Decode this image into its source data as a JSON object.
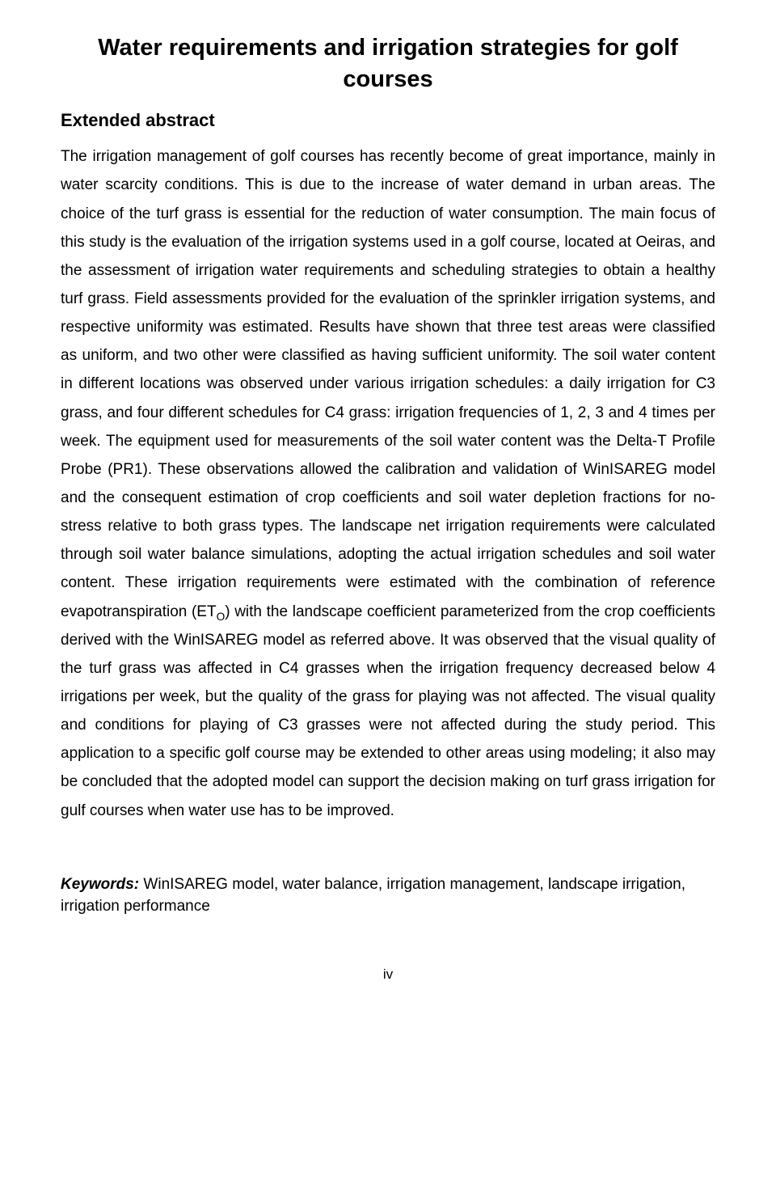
{
  "title": "Water requirements and irrigation strategies for golf courses",
  "section_heading": "Extended abstract",
  "abstract_part1": "The irrigation management of golf courses has recently become of great importance, mainly in water scarcity conditions. This is due to the increase of water demand in urban areas. The choice of the turf grass is essential for the reduction of water consumption. The main focus of this study is the evaluation of the irrigation systems used in a golf course, located at Oeiras, and the assessment of irrigation water requirements and scheduling strategies to obtain a healthy turf grass. Field assessments provided for the evaluation of the sprinkler irrigation systems, and respective uniformity was estimated. Results have shown that three test areas were classified as uniform, and two other were classified as having sufficient uniformity. The soil water content in different locations was observed under various irrigation schedules: a daily irrigation for C3 grass, and four different schedules for C4 grass: irrigation frequencies of 1, 2, 3 and 4 times per week. The equipment used for measurements of the soil water content was the Delta-T Profile Probe (PR1). These observations allowed the calibration and validation of WinISAREG model and the consequent estimation of crop coefficients and soil water depletion fractions for no-stress relative to both grass types. The landscape net irrigation requirements were calculated through soil water balance simulations, adopting the actual irrigation schedules and soil water content. These irrigation requirements were estimated with the combination of reference evapotranspiration (ET",
  "abstract_sub": "O",
  "abstract_part2": ") with the landscape coefficient parameterized from the crop coefficients derived with the WinISAREG model as referred above. It was observed that the visual quality of the turf grass was affected in C4 grasses when the irrigation frequency decreased below 4 irrigations per week, but the quality of the grass for playing was not affected. The visual quality and conditions for playing of C3 grasses were not affected during the study period. This application to a specific golf course may be extended to other areas using modeling; it also may be concluded that the adopted model can support the decision making on turf grass irrigation for gulf courses when water use has to be improved.",
  "keywords_label": "Keywords:",
  "keywords_text": " WinISAREG model, water balance, irrigation management, landscape irrigation, irrigation performance",
  "page_number": "iv"
}
